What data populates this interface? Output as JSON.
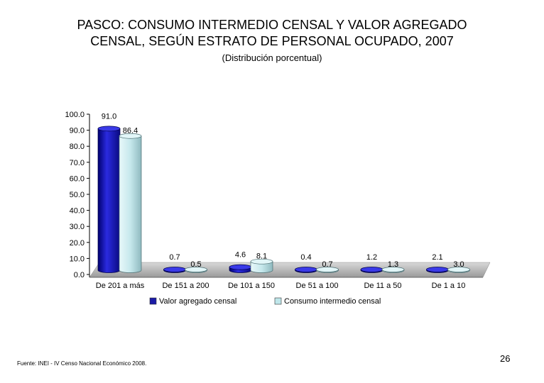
{
  "slide": {
    "title_line1": "PASCO: CONSUMO INTERMEDIO CENSAL Y VALOR AGREGADO",
    "title_line2": "CENSAL, SEGÚN ESTRATO DE PERSONAL OCUPADO, 2007",
    "subtitle": "(Distribución porcentual)",
    "source": "Fuente: INEI - IV Censo Nacional Económico 2008.",
    "page_number": "26"
  },
  "chart_data": {
    "type": "bar",
    "categories": [
      "De 201 a más",
      "De 151 a 200",
      "De 101 a 150",
      "De 51 a 100",
      "De 11 a 50",
      "De 1 a 10"
    ],
    "series": [
      {
        "name": "Valor agregado censal",
        "values": [
          91.0,
          0.7,
          4.6,
          0.4,
          1.2,
          2.1
        ],
        "labels": [
          "91.0",
          "0.7",
          "4.6",
          "0.4",
          "1.2",
          "2.1"
        ],
        "color": "#1a1aa6"
      },
      {
        "name": "Consumo intermedio censal",
        "values": [
          86.4,
          0.5,
          8.1,
          0.7,
          1.3,
          3.0
        ],
        "labels": [
          "86.4",
          "0.5",
          "8.1",
          "0.7",
          "1.3",
          "3.0"
        ],
        "color": "#bfe6ea"
      }
    ],
    "y_ticks": [
      "100.0",
      "90.0",
      "80.0",
      "70.0",
      "60.0",
      "50.0",
      "40.0",
      "30.0",
      "20.0",
      "10.0",
      "0.0"
    ],
    "ylim": [
      0,
      100
    ],
    "legend_position": "bottom",
    "grid": false
  }
}
